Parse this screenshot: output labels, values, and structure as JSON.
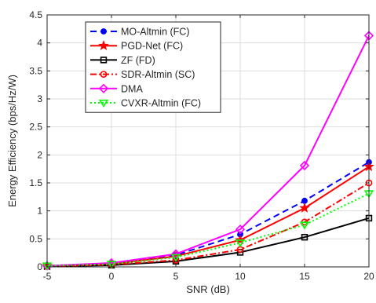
{
  "chart_data": {
    "type": "line",
    "xlabel": "SNR (dB)",
    "ylabel": "Energy Efficiency (bps/Hz/W)",
    "x": [
      -5,
      0,
      5,
      10,
      15,
      20
    ],
    "xlim": [
      -5,
      20
    ],
    "ylim": [
      0,
      4.5
    ],
    "xticks": [
      "-5",
      "0",
      "5",
      "10",
      "15",
      "20"
    ],
    "yticks": [
      "0",
      "0.5",
      "1",
      "1.5",
      "2",
      "2.5",
      "3",
      "3.5",
      "4",
      "4.5"
    ],
    "grid": true,
    "legend_position": "top-left",
    "series": [
      {
        "name": "MO-Altmin (FC)",
        "color": "#0000ff",
        "dash": "dashed",
        "marker": "dot",
        "values": [
          0.02,
          0.06,
          0.21,
          0.58,
          1.18,
          1.87
        ]
      },
      {
        "name": "PGD-Net (FC)",
        "color": "#ff0000",
        "dash": "solid",
        "marker": "star",
        "values": [
          0.02,
          0.05,
          0.19,
          0.48,
          1.05,
          1.79
        ]
      },
      {
        "name": "ZF (FD)",
        "color": "#000000",
        "dash": "solid",
        "marker": "square",
        "values": [
          0.01,
          0.03,
          0.1,
          0.26,
          0.53,
          0.87
        ]
      },
      {
        "name": "SDR-Altmin (SC)",
        "color": "#ff0000",
        "dash": "dashdot",
        "marker": "circle",
        "values": [
          0.01,
          0.04,
          0.12,
          0.31,
          0.8,
          1.5
        ]
      },
      {
        "name": "DMA",
        "color": "#ff00ff",
        "dash": "solid",
        "marker": "diamond",
        "values": [
          0.02,
          0.07,
          0.23,
          0.67,
          1.81,
          4.13
        ]
      },
      {
        "name": "CVXR-Altmin (FC)",
        "color": "#00ff00",
        "dash": "dotted",
        "marker": "triangle-down",
        "values": [
          0.02,
          0.05,
          0.17,
          0.43,
          0.75,
          1.31
        ]
      }
    ]
  }
}
